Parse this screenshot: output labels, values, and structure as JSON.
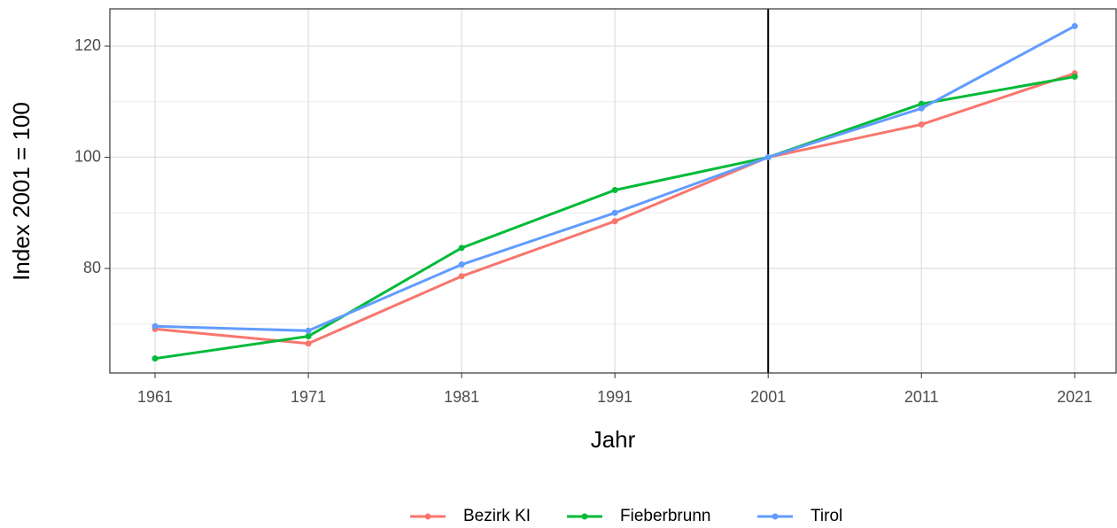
{
  "chart_data": {
    "type": "line",
    "xlabel": "Jahr",
    "ylabel": "Index 2001 = 100",
    "x": [
      1961,
      1971,
      1981,
      1991,
      2001,
      2011,
      2021
    ],
    "series": [
      {
        "name": "Bezirk KI",
        "color": "#F8766D",
        "values": [
          69.1,
          66.5,
          78.6,
          88.5,
          100,
          105.9,
          115.1
        ]
      },
      {
        "name": "Fieberbrunn",
        "color": "#00BA38",
        "values": [
          63.8,
          67.8,
          83.7,
          94.1,
          100,
          109.6,
          114.5
        ]
      },
      {
        "name": "Tirol",
        "color": "#619CFF",
        "values": [
          69.6,
          68.8,
          80.7,
          90.0,
          100,
          108.8,
          123.6
        ]
      }
    ],
    "xlim": [
      1958.05,
      2023.7
    ],
    "xticks": [
      1961,
      1971,
      1981,
      1991,
      2001,
      2011,
      2021
    ],
    "ylim": [
      61.2,
      126.7
    ],
    "yticks": [
      80,
      100,
      120
    ],
    "yticks_minor": [
      70,
      90,
      110
    ],
    "vline": 2001,
    "grid": true,
    "legend": "bottom"
  }
}
